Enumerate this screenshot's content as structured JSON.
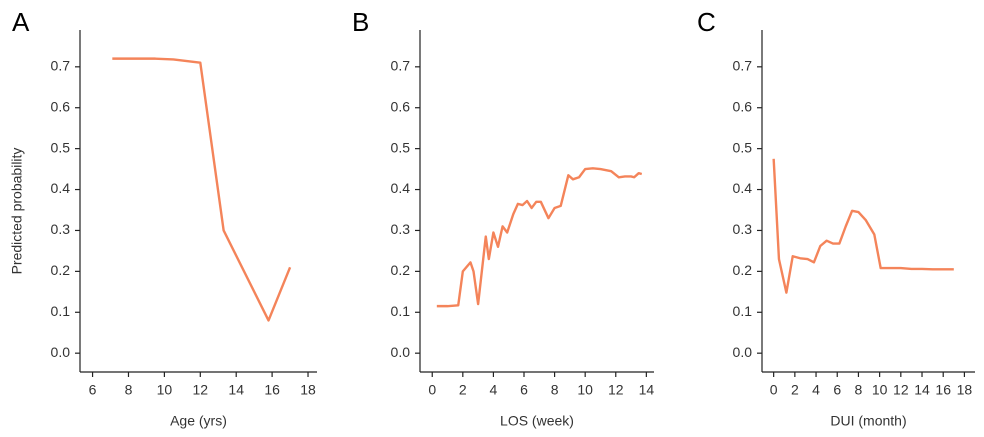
{
  "chart_data": [
    {
      "type": "line",
      "title": "A",
      "xlabel": "Age (yrs)",
      "ylabel": "Predicted probability",
      "color": "#f4845a",
      "x": [
        7.1,
        9.5,
        10.5,
        12,
        13.3,
        15.8,
        17
      ],
      "values": [
        0.72,
        0.72,
        0.718,
        0.71,
        0.3,
        0.08,
        0.21
      ],
      "xlim": [
        5.3,
        18.5
      ],
      "xticks": [
        6,
        8,
        10,
        12,
        14,
        16,
        18
      ],
      "ylim": [
        -0.046,
        0.79
      ],
      "yticks": [
        {
          "value": 0,
          "label": "0.0"
        },
        0.1,
        0.2,
        0.3,
        0.4,
        0.5,
        0.6,
        0.7
      ]
    },
    {
      "type": "line",
      "title": "B",
      "xlabel": "LOS (week)",
      "color": "#f4845a",
      "x": [
        0.3,
        1,
        1.7,
        2,
        2.5,
        2.7,
        3,
        3.5,
        3.7,
        4,
        4.3,
        4.6,
        4.9,
        5.3,
        5.6,
        5.9,
        6.2,
        6.5,
        6.8,
        7.1,
        7.6,
        8,
        8.4,
        8.9,
        9.2,
        9.6,
        10,
        10.5,
        11,
        11.7,
        12.2,
        12.6,
        13,
        13.2,
        13.5,
        13.7
      ],
      "values": [
        0.115,
        0.115,
        0.117,
        0.2,
        0.222,
        0.2,
        0.12,
        0.285,
        0.23,
        0.295,
        0.26,
        0.31,
        0.295,
        0.34,
        0.365,
        0.362,
        0.372,
        0.355,
        0.37,
        0.37,
        0.33,
        0.355,
        0.36,
        0.435,
        0.425,
        0.43,
        0.45,
        0.452,
        0.45,
        0.445,
        0.43,
        0.432,
        0.432,
        0.43,
        0.44,
        0.438
      ],
      "xlim": [
        -0.8,
        14.5
      ],
      "xticks": [
        0,
        2,
        4,
        6,
        8,
        10,
        12,
        14
      ],
      "ylim": [
        -0.046,
        0.79
      ],
      "yticks": [
        {
          "value": 0,
          "label": "0.0"
        },
        0.1,
        0.2,
        0.3,
        0.4,
        0.5,
        0.6,
        0.7
      ]
    },
    {
      "type": "line",
      "title": "C",
      "xlabel": "DUI (month)",
      "color": "#f4845a",
      "x": [
        0,
        0.5,
        1.2,
        1.8,
        2.5,
        3.2,
        3.8,
        4.4,
        5,
        5.6,
        6.2,
        6.8,
        7.4,
        8,
        8.7,
        9.5,
        10.1,
        11,
        12,
        13,
        14,
        15,
        16,
        17
      ],
      "values": [
        0.475,
        0.23,
        0.148,
        0.237,
        0.232,
        0.23,
        0.222,
        0.262,
        0.275,
        0.268,
        0.268,
        0.31,
        0.348,
        0.345,
        0.325,
        0.29,
        0.208,
        0.208,
        0.208,
        0.206,
        0.206,
        0.205,
        0.205,
        0.205
      ],
      "xlim": [
        -1.1,
        19
      ],
      "xticks": [
        0,
        2,
        4,
        6,
        8,
        10,
        12,
        14,
        16,
        18
      ],
      "ylim": [
        -0.046,
        0.79
      ],
      "yticks": [
        {
          "value": 0,
          "label": "0.0"
        },
        0.1,
        0.2,
        0.3,
        0.4,
        0.5,
        0.6,
        0.7
      ]
    }
  ]
}
